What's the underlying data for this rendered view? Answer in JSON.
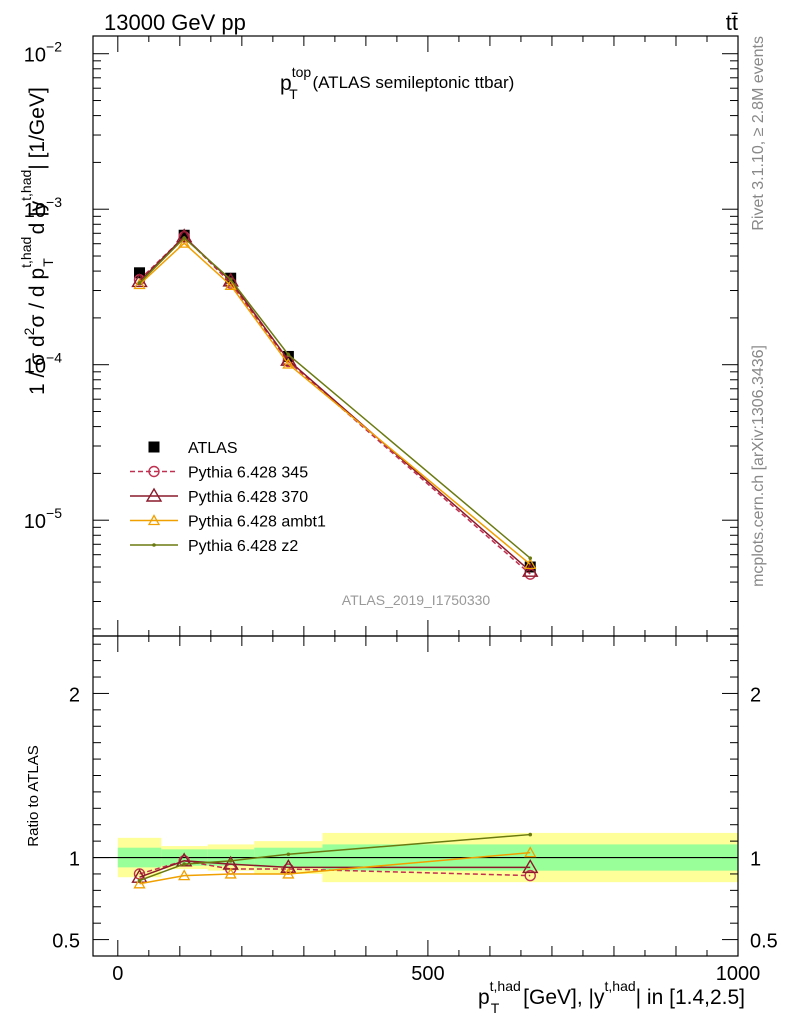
{
  "header": {
    "energy_label": "13000 GeV pp",
    "process_label": "tt̄"
  },
  "side_labels": {
    "rivet": "Rivet 3.1.10, ≥ 2.8M events",
    "mcplots": "mcplots.cern.ch [arXiv:1306.3436]"
  },
  "analysis_id": "ATLAS_2019_I1750330",
  "chart_data": {
    "type": "line",
    "title": {
      "symbol": "p",
      "sup": "top",
      "sub": "T",
      "rest": " (ATLAS semileptonic ttbar)"
    },
    "ylabel": {
      "a": "1 / σ d",
      "a_sup": "2",
      "b": "σ /  d p",
      "b_sup": "t,had",
      "b_sub": "T",
      "c": " d |y",
      "c_sup": "t,had",
      "d": "| [1/GeV]"
    },
    "xlabel": {
      "symbol": "p",
      "sup1": "t,had",
      "sub1": "T",
      "mid": " [GeV], |y",
      "sup2": "t,had",
      "rest": "| in [1.4,2.5]"
    },
    "ratio_ylabel": "Ratio to ATLAS",
    "xlim": [
      -40,
      1000
    ],
    "ylim": [
      1.8e-06,
      0.013
    ],
    "yscale": "log",
    "ratio_ylim": [
      0.4,
      2.35
    ],
    "x_ticks": [
      0,
      500,
      1000
    ],
    "x_tick_labels": [
      "0",
      "500",
      "1000"
    ],
    "y_ticks": [
      1e-05,
      0.0001,
      0.001,
      0.01
    ],
    "y_tick_labels": [
      {
        "base": "10",
        "exp": "−5"
      },
      {
        "base": "10",
        "exp": "−4"
      },
      {
        "base": "10",
        "exp": "−3"
      },
      {
        "base": "10",
        "exp": "−2"
      }
    ],
    "ratio_ticks": [
      0.5,
      1,
      2
    ],
    "ratio_tick_labels": [
      "0.5",
      "1",
      "2"
    ],
    "bins": [
      {
        "lo": 0,
        "hi": 70,
        "x": 35,
        "y": 0.00039,
        "unc_inner": 0.06,
        "unc_outer": 0.12
      },
      {
        "lo": 70,
        "hi": 145,
        "x": 107,
        "y": 0.00068,
        "unc_inner": 0.05,
        "unc_outer": 0.07
      },
      {
        "lo": 145,
        "hi": 220,
        "x": 182,
        "y": 0.00036,
        "unc_inner": 0.05,
        "unc_outer": 0.08
      },
      {
        "lo": 220,
        "hi": 330,
        "x": 275,
        "y": 0.000113,
        "unc_inner": 0.06,
        "unc_outer": 0.1
      },
      {
        "lo": 330,
        "hi": 1000,
        "x": 665,
        "y": 5e-06,
        "unc_inner": 0.08,
        "unc_outer": 0.15
      }
    ],
    "series": [
      {
        "name": "ATLAS",
        "color": "#000000",
        "marker": "square",
        "style": "none",
        "x": [
          35,
          107,
          182,
          275,
          665
        ],
        "y": [
          0.00039,
          0.00068,
          0.00036,
          0.000113,
          5e-06
        ]
      },
      {
        "name": "Pythia 6.428 345",
        "color": "#c03050",
        "marker": "circle",
        "style": "dashed",
        "x": [
          35,
          107,
          182,
          275,
          665
        ],
        "y": [
          0.000352,
          0.000666,
          0.000335,
          0.000105,
          4.5e-06
        ],
        "ratio": [
          0.9,
          0.98,
          0.93,
          0.93,
          0.89
        ]
      },
      {
        "name": "Pythia 6.428 370",
        "color": "#8b1a2c",
        "marker": "triangle",
        "style": "solid",
        "x": [
          35,
          107,
          182,
          275,
          665
        ],
        "y": [
          0.000343,
          0.000666,
          0.000346,
          0.000107,
          4.7e-06
        ],
        "ratio": [
          0.88,
          0.98,
          0.96,
          0.94,
          0.94
        ]
      },
      {
        "name": "Pythia 6.428 ambt1",
        "color": "#f0a000",
        "marker": "triangle-small",
        "style": "solid",
        "x": [
          35,
          107,
          182,
          275,
          665
        ],
        "y": [
          0.000328,
          0.000605,
          0.000324,
          0.000101,
          5.2e-06
        ],
        "ratio": [
          0.84,
          0.89,
          0.9,
          0.9,
          1.03
        ]
      },
      {
        "name": "Pythia 6.428 z2",
        "color": "#6b7a10",
        "marker": "dot",
        "style": "solid",
        "x": [
          35,
          107,
          182,
          275,
          665
        ],
        "y": [
          0.000335,
          0.000653,
          0.000353,
          0.000116,
          5.7e-06
        ],
        "ratio": [
          0.86,
          0.96,
          0.98,
          1.02,
          1.14
        ]
      }
    ],
    "legend_position": "lower-left",
    "colors": {
      "band_inner": "#99ff99",
      "band_outer": "#ffff99"
    }
  }
}
